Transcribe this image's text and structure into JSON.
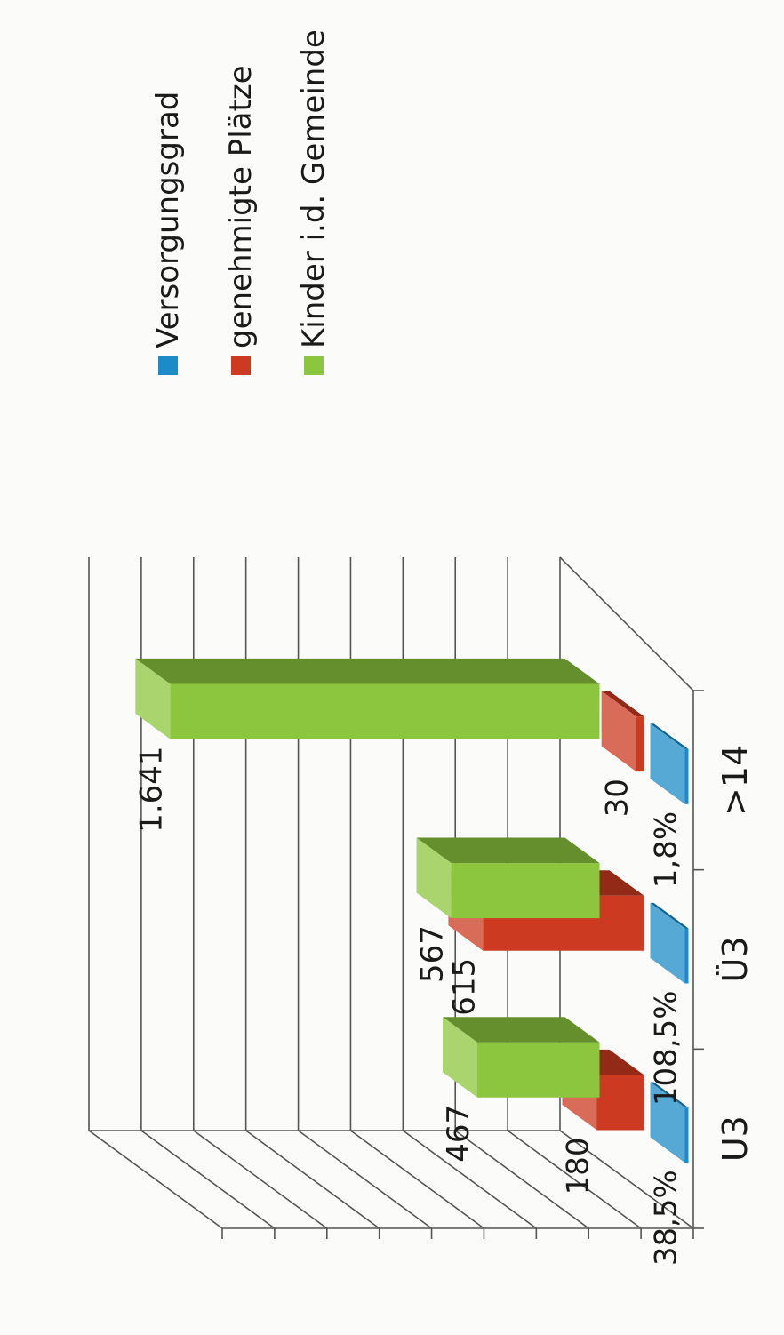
{
  "chart_data": {
    "type": "bar",
    "categories": [
      "U3",
      "Ü3",
      ">14"
    ],
    "series": [
      {
        "name": "Versorgungsgrad",
        "values": [
          38.5,
          108.5,
          1.8
        ],
        "labels": [
          "38,5%",
          "108,5%",
          "1,8%"
        ],
        "color": "#1d8bc7"
      },
      {
        "name": "genehmigte Plätze",
        "values": [
          180,
          615,
          30
        ],
        "labels": [
          "180",
          "615",
          "30"
        ],
        "color": "#cc3a22"
      },
      {
        "name": "Kinder i.d. Gemeinde",
        "values": [
          467,
          567,
          1641
        ],
        "labels": [
          "467",
          "567",
          "1.641"
        ],
        "color": "#8cc63e"
      }
    ],
    "legend_position": "right",
    "grid": true
  }
}
